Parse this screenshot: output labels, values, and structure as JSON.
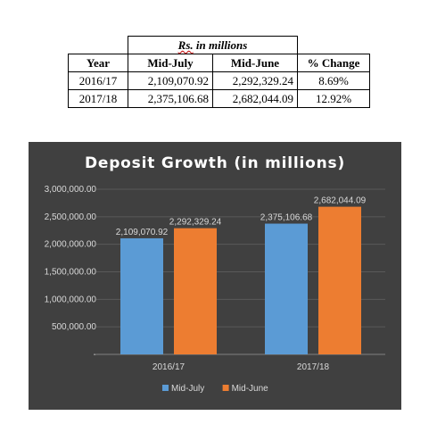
{
  "table": {
    "caption": "in millions",
    "caption_prefix": "Rs.",
    "headers": [
      "Year",
      "Mid-July",
      "Mid-June",
      "% Change"
    ],
    "rows": [
      [
        "2016/17",
        "2,109,070.92",
        "2,292,329.24",
        "8.69%"
      ],
      [
        "2017/18",
        "2,375,106.68",
        "2,682,044.09",
        "12.92%"
      ]
    ]
  },
  "chart_data": {
    "type": "bar",
    "title": "Deposit  Growth  (in millions)",
    "categories": [
      "2016/17",
      "2017/18"
    ],
    "series": [
      {
        "name": "Mid-July",
        "values": [
          2109070.92,
          2375106.68
        ],
        "labels": [
          "2,109,070.92",
          "2,375,106.68"
        ],
        "color": "#5b9bd5"
      },
      {
        "name": "Mid-June",
        "values": [
          2292329.24,
          2682044.09
        ],
        "labels": [
          "2,292,329.24",
          "2,682,044.09"
        ],
        "color": "#ed7d31"
      }
    ],
    "ylim": [
      0,
      3000000
    ],
    "yticks": [
      0,
      500000,
      1000000,
      1500000,
      2000000,
      2500000,
      3000000
    ],
    "ytick_labels": [
      "-",
      "500,000.00",
      "1,000,000.00",
      "1,500,000.00",
      "2,000,000.00",
      "2,500,000.00",
      "3,000,000.00"
    ],
    "grid": true,
    "legend_position": "bottom",
    "colors": {
      "background": "#404040",
      "grid": "#595959",
      "text": "#d9d9d9"
    }
  }
}
